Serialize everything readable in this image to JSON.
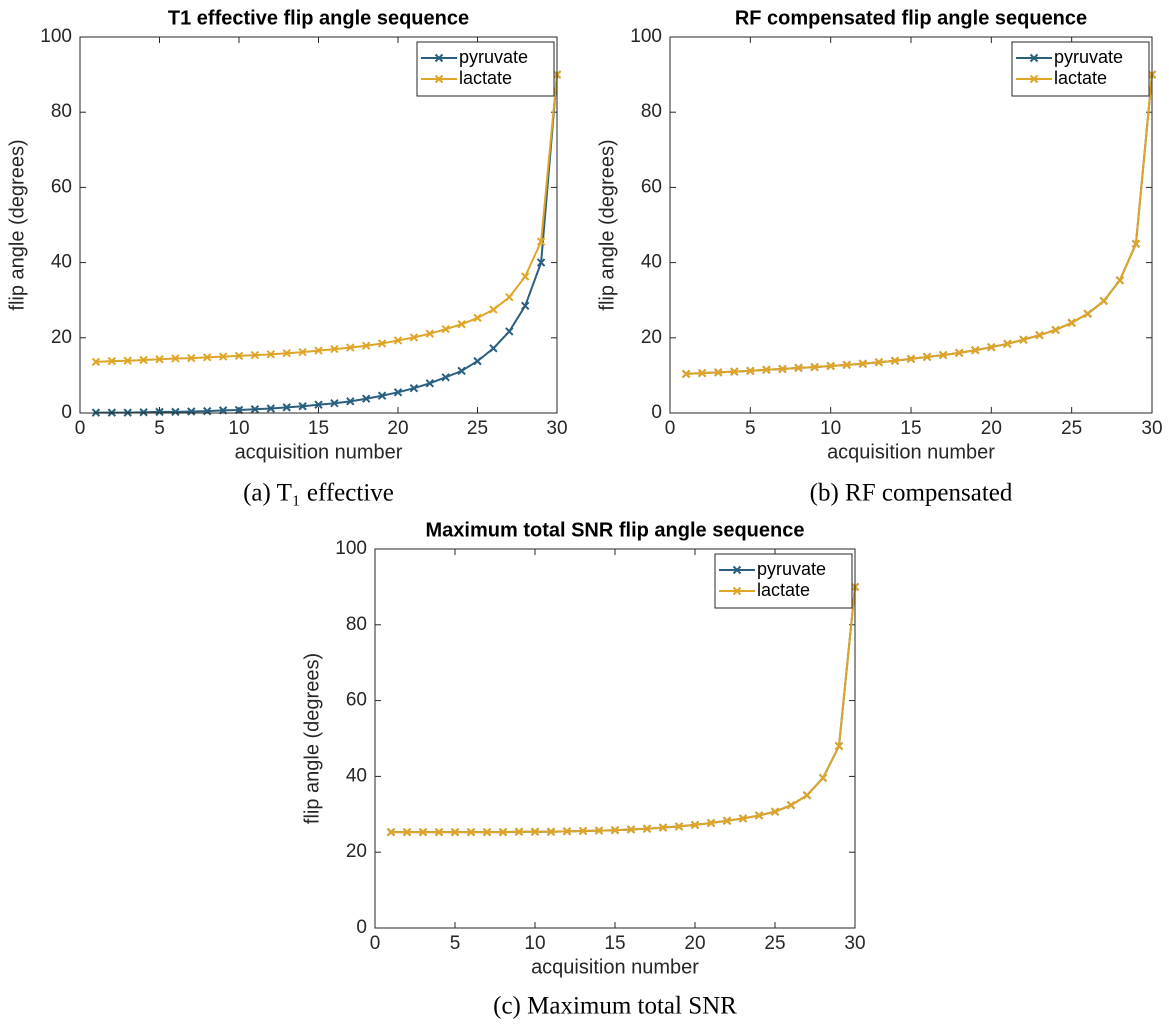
{
  "chart_data": [
    {
      "type": "line",
      "title": "T1 effective flip angle sequence",
      "xlabel": "acquisition number",
      "ylabel": "flip angle (degrees)",
      "caption": "(a) T₁ effective",
      "x": [
        1,
        2,
        3,
        4,
        5,
        6,
        7,
        8,
        9,
        10,
        11,
        12,
        13,
        14,
        15,
        16,
        17,
        18,
        19,
        20,
        21,
        22,
        23,
        24,
        25,
        26,
        27,
        28,
        29,
        30
      ],
      "series": [
        {
          "name": "pyruvate",
          "color": "#2a5f7f",
          "values": [
            0.1,
            0.1,
            0.1,
            0.2,
            0.3,
            0.3,
            0.4,
            0.5,
            0.7,
            0.8,
            1.0,
            1.2,
            1.5,
            1.8,
            2.2,
            2.6,
            3.1,
            3.8,
            4.6,
            5.5,
            6.6,
            7.9,
            9.5,
            11.2,
            13.8,
            17.2,
            21.7,
            28.5,
            40.0,
            90
          ]
        },
        {
          "name": "lactate",
          "color": "#e0a526",
          "values": [
            13.6,
            13.8,
            13.9,
            14.1,
            14.3,
            14.5,
            14.6,
            14.8,
            15.0,
            15.2,
            15.4,
            15.6,
            15.9,
            16.2,
            16.6,
            17.0,
            17.4,
            17.9,
            18.5,
            19.3,
            20.1,
            21.1,
            22.3,
            23.6,
            25.3,
            27.5,
            30.8,
            36.3,
            45.6,
            90
          ]
        }
      ],
      "xlim": [
        0,
        30
      ],
      "xticks": [
        0,
        5,
        10,
        15,
        20,
        25,
        30
      ],
      "ylim": [
        0,
        100
      ],
      "yticks": [
        0,
        20,
        40,
        60,
        80,
        100
      ],
      "legend": "upper right"
    },
    {
      "type": "line",
      "title": "RF compensated flip angle sequence",
      "xlabel": "acquisition number",
      "ylabel": "flip angle (degrees)",
      "caption": "(b) RF compensated",
      "x": [
        1,
        2,
        3,
        4,
        5,
        6,
        7,
        8,
        9,
        10,
        11,
        12,
        13,
        14,
        15,
        16,
        17,
        18,
        19,
        20,
        21,
        22,
        23,
        24,
        25,
        26,
        27,
        28,
        29,
        30
      ],
      "series": [
        {
          "name": "pyruvate",
          "color": "#2a5f7f",
          "values": [
            10.4,
            10.6,
            10.8,
            11.0,
            11.2,
            11.5,
            11.7,
            12.0,
            12.2,
            12.5,
            12.8,
            13.1,
            13.5,
            13.9,
            14.4,
            14.9,
            15.4,
            16.0,
            16.7,
            17.5,
            18.4,
            19.5,
            20.7,
            22.1,
            24.0,
            26.4,
            29.8,
            35.3,
            45.0,
            90
          ]
        },
        {
          "name": "lactate",
          "color": "#e0a526",
          "values": [
            10.4,
            10.6,
            10.8,
            11.0,
            11.2,
            11.5,
            11.7,
            12.0,
            12.2,
            12.5,
            12.8,
            13.1,
            13.5,
            13.9,
            14.4,
            14.9,
            15.4,
            16.0,
            16.7,
            17.5,
            18.4,
            19.5,
            20.7,
            22.1,
            24.0,
            26.4,
            29.8,
            35.3,
            45.0,
            90
          ]
        }
      ],
      "xlim": [
        0,
        30
      ],
      "xticks": [
        0,
        5,
        10,
        15,
        20,
        25,
        30
      ],
      "ylim": [
        0,
        100
      ],
      "yticks": [
        0,
        20,
        40,
        60,
        80,
        100
      ],
      "legend": "upper right"
    },
    {
      "type": "line",
      "title": "Maximum total SNR flip angle sequence",
      "xlabel": "acquisition number",
      "ylabel": "flip angle (degrees)",
      "caption": "(c) Maximum total SNR",
      "x": [
        1,
        2,
        3,
        4,
        5,
        6,
        7,
        8,
        9,
        10,
        11,
        12,
        13,
        14,
        15,
        16,
        17,
        18,
        19,
        20,
        21,
        22,
        23,
        24,
        25,
        26,
        27,
        28,
        29,
        30
      ],
      "series": [
        {
          "name": "pyruvate",
          "color": "#2a5f7f",
          "values": [
            25.3,
            25.3,
            25.3,
            25.3,
            25.3,
            25.3,
            25.3,
            25.3,
            25.4,
            25.4,
            25.4,
            25.5,
            25.6,
            25.7,
            25.8,
            26.0,
            26.2,
            26.5,
            26.8,
            27.2,
            27.7,
            28.3,
            28.9,
            29.7,
            30.7,
            32.4,
            35.0,
            39.6,
            48.0,
            90
          ]
        },
        {
          "name": "lactate",
          "color": "#e0a526",
          "values": [
            25.3,
            25.3,
            25.3,
            25.3,
            25.3,
            25.3,
            25.3,
            25.3,
            25.4,
            25.4,
            25.4,
            25.5,
            25.6,
            25.7,
            25.8,
            26.0,
            26.2,
            26.5,
            26.8,
            27.2,
            27.7,
            28.3,
            28.9,
            29.7,
            30.7,
            32.4,
            35.0,
            39.6,
            48.0,
            90
          ]
        }
      ],
      "xlim": [
        0,
        30
      ],
      "xticks": [
        0,
        5,
        10,
        15,
        20,
        25,
        30
      ],
      "ylim": [
        0,
        100
      ],
      "yticks": [
        0,
        20,
        40,
        60,
        80,
        100
      ],
      "legend": "upper right"
    }
  ]
}
